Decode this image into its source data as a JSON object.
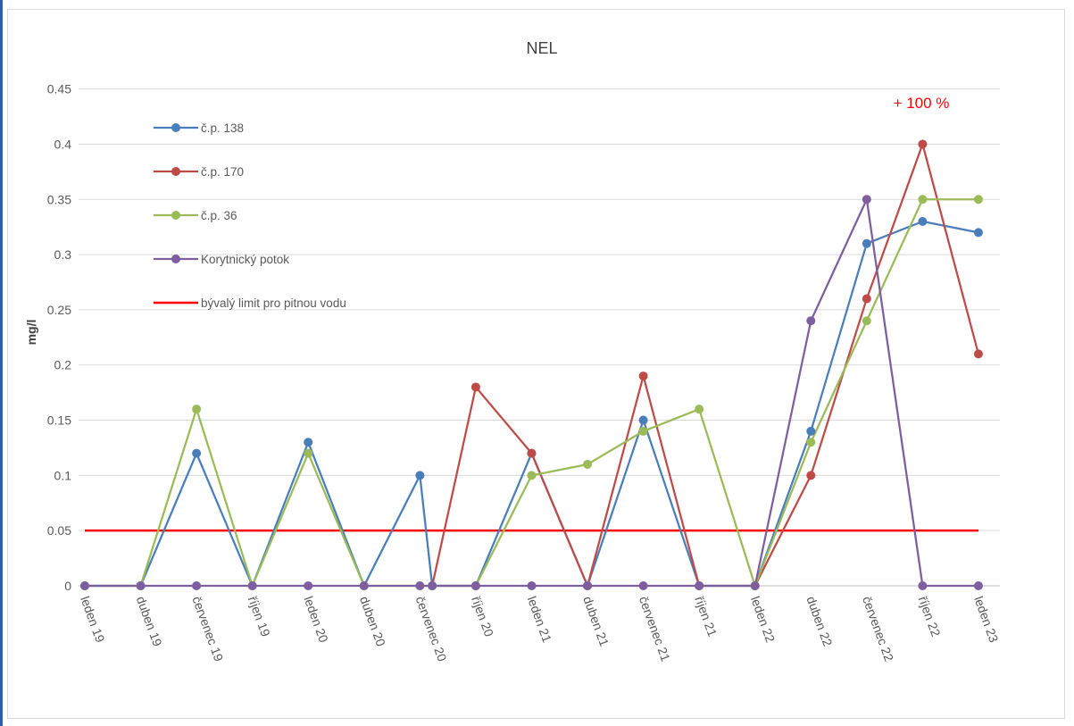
{
  "chart_data": {
    "type": "line",
    "title": "NEL",
    "ylabel": "mg/l",
    "xlabel": "",
    "ylim": [
      0,
      0.45
    ],
    "yticks": [
      "0",
      "0.05",
      "0.1",
      "0.15",
      "0.2",
      "0.25",
      "0.3",
      "0.35",
      "0.4",
      "0.45"
    ],
    "grid": true,
    "legend_position": "top-left",
    "annotation": "+ 100 %",
    "categories": [
      "leden 19",
      "duben 19",
      "červenec 19",
      "říjen 19",
      "leden 20",
      "duben 20",
      "červenec 20",
      "říjen 20",
      "leden 21",
      "duben 21",
      "červenec 21",
      "říjen 21",
      "leden 22",
      "duben 22",
      "červenec 22",
      "říjen 22",
      "leden 23"
    ],
    "series": [
      {
        "name": "č.p. 138",
        "color": "#4a7ebb",
        "points": [
          [
            0,
            0
          ],
          [
            1,
            0
          ],
          [
            2,
            0.12
          ],
          [
            3,
            0
          ],
          [
            4,
            0.13
          ],
          [
            5,
            0
          ],
          [
            6,
            0.1
          ],
          [
            6.22,
            0
          ],
          [
            7,
            0
          ],
          [
            8,
            0.12
          ],
          [
            9,
            0
          ],
          [
            10,
            0.15
          ],
          [
            11,
            0
          ],
          [
            12,
            0
          ],
          [
            13,
            0.14
          ],
          [
            14,
            0.31
          ],
          [
            15,
            0.33
          ],
          [
            16,
            0.32
          ]
        ]
      },
      {
        "name": "č.p. 170",
        "color": "#be4b48",
        "points": [
          [
            6.22,
            0
          ],
          [
            7,
            0.18
          ],
          [
            8,
            0.12
          ],
          [
            9,
            0
          ],
          [
            10,
            0.19
          ],
          [
            11,
            0
          ],
          [
            12,
            0
          ],
          [
            13,
            0.1
          ],
          [
            14,
            0.26
          ],
          [
            15,
            0.4
          ],
          [
            16,
            0.21
          ]
        ]
      },
      {
        "name": "č.p. 36",
        "color": "#9bbb59",
        "points": [
          [
            0,
            0
          ],
          [
            1,
            0
          ],
          [
            2,
            0.16
          ],
          [
            3,
            0
          ],
          [
            4,
            0.12
          ],
          [
            5,
            0
          ],
          [
            6,
            0
          ],
          [
            6.22,
            0
          ],
          [
            7,
            0
          ],
          [
            8,
            0.1
          ],
          [
            9,
            0.11
          ],
          [
            10,
            0.14
          ],
          [
            11,
            0.16
          ],
          [
            12,
            0
          ],
          [
            13,
            0.13
          ],
          [
            14,
            0.24
          ],
          [
            15,
            0.35
          ],
          [
            16,
            0.35
          ]
        ]
      },
      {
        "name": "Korytnický potok",
        "color": "#7d5fa0",
        "points": [
          [
            0,
            0
          ],
          [
            1,
            0
          ],
          [
            2,
            0
          ],
          [
            3,
            0
          ],
          [
            4,
            0
          ],
          [
            5,
            0
          ],
          [
            6,
            0
          ],
          [
            6.22,
            0
          ],
          [
            7,
            0
          ],
          [
            8,
            0
          ],
          [
            9,
            0
          ],
          [
            10,
            0
          ],
          [
            11,
            0
          ],
          [
            12,
            0
          ],
          [
            13,
            0.24
          ],
          [
            14,
            0.35
          ],
          [
            15,
            0
          ],
          [
            16,
            0
          ]
        ]
      }
    ],
    "reference_line": {
      "name": "bývalý limit pro pitnou vodu",
      "value": 0.05,
      "color": "#ff0000"
    }
  }
}
